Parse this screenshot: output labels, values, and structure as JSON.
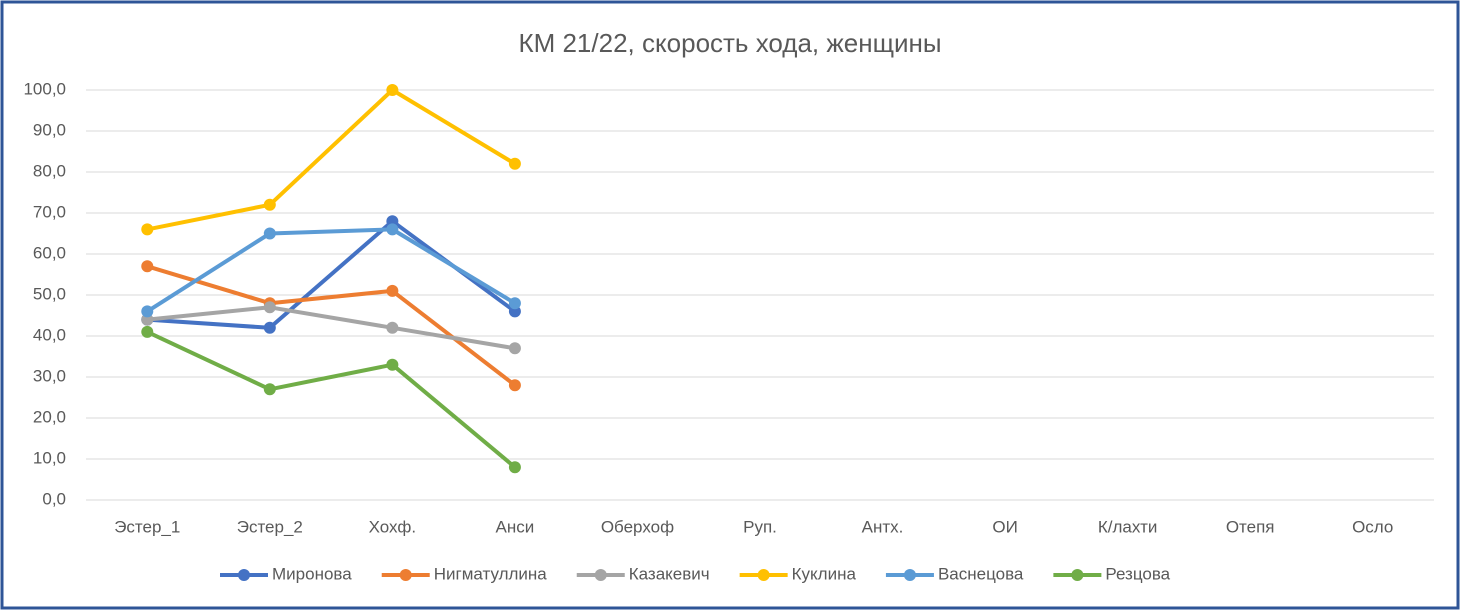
{
  "chart_data": {
    "type": "line",
    "title": "КМ 21/22, скорость хода, женщины",
    "categories": [
      "Эстер_1",
      "Эстер_2",
      "Хохф.",
      "Анси",
      "Оберхоф",
      "Руп.",
      "Антх.",
      "ОИ",
      "К/лахти",
      "Отепя",
      "Осло"
    ],
    "series": [
      {
        "name": "Миронова",
        "color": "#4472c4",
        "values": [
          44,
          42,
          68,
          46,
          null,
          null,
          null,
          null,
          null,
          null,
          null
        ]
      },
      {
        "name": "Нигматуллина",
        "color": "#ed7d31",
        "values": [
          57,
          48,
          51,
          28,
          null,
          null,
          null,
          null,
          null,
          null,
          null
        ]
      },
      {
        "name": "Казакевич",
        "color": "#a5a5a5",
        "values": [
          44,
          47,
          42,
          37,
          null,
          null,
          null,
          null,
          null,
          null,
          null
        ]
      },
      {
        "name": "Куклина",
        "color": "#ffc000",
        "values": [
          66,
          72,
          100,
          82,
          null,
          null,
          null,
          null,
          null,
          null,
          null
        ]
      },
      {
        "name": "Васнецова",
        "color": "#5b9bd5",
        "values": [
          46,
          65,
          66,
          48,
          null,
          null,
          null,
          null,
          null,
          null,
          null
        ]
      },
      {
        "name": "Резцова",
        "color": "#70ad47",
        "values": [
          41,
          27,
          33,
          8,
          null,
          null,
          null,
          null,
          null,
          null,
          null
        ]
      }
    ],
    "ylim": [
      0,
      100
    ],
    "yticks": [
      {
        "value": 0,
        "label": "0,0"
      },
      {
        "value": 10,
        "label": "10,0"
      },
      {
        "value": 20,
        "label": "20,0"
      },
      {
        "value": 30,
        "label": "30,0"
      },
      {
        "value": 40,
        "label": "40,0"
      },
      {
        "value": 50,
        "label": "50,0"
      },
      {
        "value": 60,
        "label": "60,0"
      },
      {
        "value": 70,
        "label": "70,0"
      },
      {
        "value": 80,
        "label": "80,0"
      },
      {
        "value": 90,
        "label": "90,0"
      },
      {
        "value": 100,
        "label": "100,0"
      }
    ],
    "grid": true,
    "legend": "bottom"
  }
}
